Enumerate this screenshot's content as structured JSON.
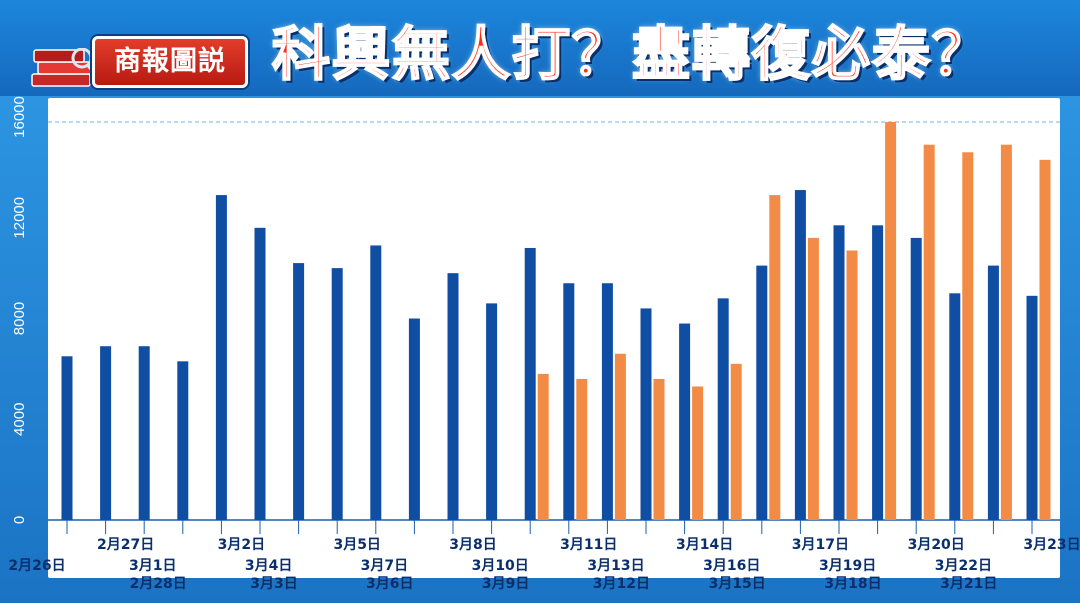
{
  "header": {
    "badge_label": "商報圖説",
    "title": "科興無人打？盡轉復必泰？"
  },
  "icons": {
    "books": "books-icon",
    "magnifier": "magnifier-icon"
  },
  "colors": {
    "series_a": "#0f4ea3",
    "series_b": "#f28b45",
    "title": "#ff2a17"
  },
  "chart_data": {
    "type": "bar",
    "title": "",
    "xlabel": "",
    "ylabel": "",
    "ylim": [
      0,
      16000
    ],
    "yticks": [
      0,
      4000,
      8000,
      12000,
      16000
    ],
    "grid": false,
    "reference_line": 15800,
    "categories": [
      "2月26日",
      "2月27日",
      "2月28日",
      "3月1日",
      "3月2日",
      "3月3日",
      "3月4日",
      "3月5日",
      "3月6日",
      "3月7日",
      "3月8日",
      "3月9日",
      "3月10日",
      "3月11日",
      "3月12日",
      "3月13日",
      "3月14日",
      "3月15日",
      "3月16日",
      "3月17日",
      "3月18日",
      "3月19日",
      "3月20日",
      "3月21日",
      "3月22日",
      "3月23日"
    ],
    "series": [
      {
        "values": [
          6500,
          6900,
          6900,
          6300,
          12900,
          11600,
          10200,
          10000,
          10900,
          8000,
          9800,
          8600,
          10800,
          9400,
          9400,
          8400,
          7800,
          8800,
          10100,
          13100,
          11700,
          11700,
          11200,
          9000,
          10100,
          8900
        ]
      },
      {
        "values": [
          null,
          null,
          null,
          null,
          null,
          null,
          null,
          null,
          null,
          null,
          null,
          null,
          5800,
          5600,
          6600,
          5600,
          5300,
          6200,
          12900,
          11200,
          10700,
          15800,
          14900,
          14600,
          14900,
          14300
        ]
      }
    ]
  }
}
